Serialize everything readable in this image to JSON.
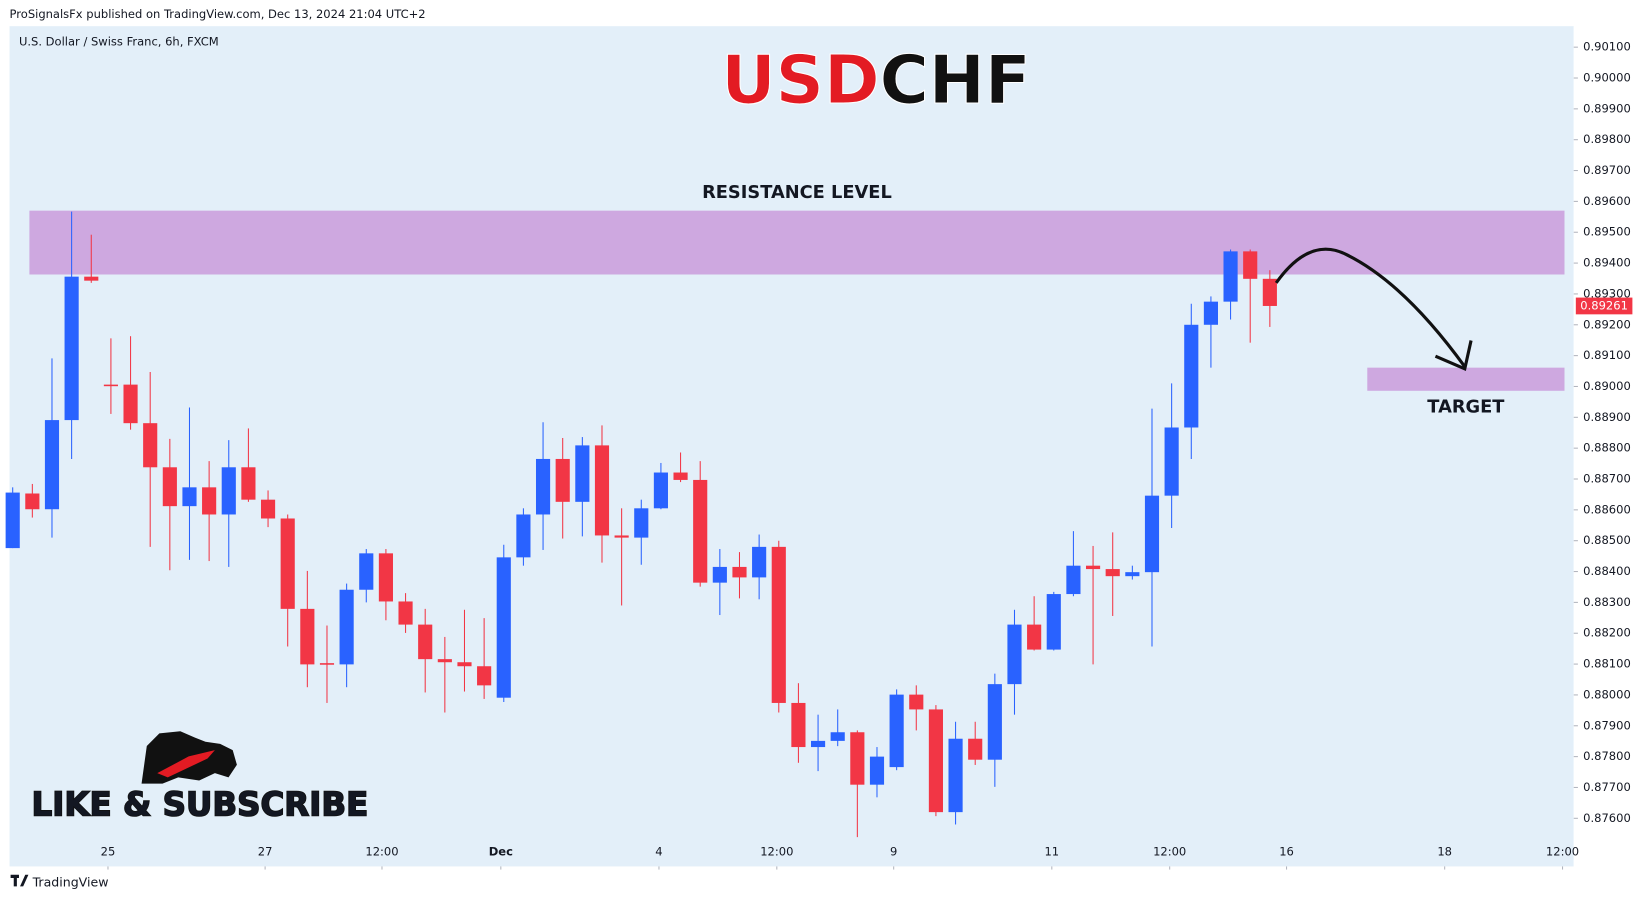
{
  "header": "ProSignalsFx published on TradingView.com, Dec 13, 2024 21:04 UTC+2",
  "footer": "TradingView",
  "badge": "LIKE & SUBSCRIBE",
  "chart_data": {
    "type": "candlestick",
    "title_parts": [
      "USD",
      "CHF"
    ],
    "symbol": "U.S. Dollar / Swiss Franc, 6h, FXCM",
    "up_color": "#2962ff",
    "down_color": "#f23645",
    "open": [
      0.88476,
      0.88653,
      0.88602,
      0.88891,
      0.89356,
      0.89006,
      0.89006,
      0.88881,
      0.88738,
      0.88612,
      0.88673,
      0.88585,
      0.88738,
      0.88633,
      0.88572,
      0.88279,
      0.88103,
      0.88099,
      0.88341,
      0.88459,
      0.88303,
      0.88228,
      0.88116,
      0.88106,
      0.88093,
      0.87991,
      0.88446,
      0.88585,
      0.88765,
      0.88626,
      0.88809,
      0.88517,
      0.8851,
      0.88605,
      0.88721,
      0.88697,
      0.88364,
      0.88415,
      0.88381,
      0.8848,
      0.87974,
      0.87831,
      0.87851,
      0.87879,
      0.87709,
      0.87766,
      0.88001,
      0.87953,
      0.8762,
      0.87858,
      0.8779,
      0.88035,
      0.88228,
      0.88147,
      0.88327,
      0.88419,
      0.88408,
      0.88385,
      0.88398,
      0.88646,
      0.88867,
      0.892,
      0.89275,
      0.89438,
      0.89349
    ],
    "high": [
      0.88673,
      0.88684,
      0.89091,
      0.89567,
      0.89492,
      0.89156,
      0.89163,
      0.89047,
      0.8883,
      0.88932,
      0.88758,
      0.88826,
      0.88864,
      0.88663,
      0.88585,
      0.88402,
      0.88225,
      0.88361,
      0.88473,
      0.88473,
      0.8833,
      0.88279,
      0.88188,
      0.88276,
      0.88249,
      0.88487,
      0.88605,
      0.88884,
      0.88833,
      0.88836,
      0.88874,
      0.88605,
      0.88633,
      0.88752,
      0.88786,
      0.88758,
      0.88473,
      0.88463,
      0.8852,
      0.885,
      0.88038,
      0.87936,
      0.87953,
      0.87885,
      0.87831,
      0.88018,
      0.88031,
      0.87967,
      0.87913,
      0.87913,
      0.88069,
      0.88276,
      0.8832,
      0.88334,
      0.88531,
      0.88483,
      0.88527,
      0.88419,
      0.88928,
      0.8901,
      0.89268,
      0.89292,
      0.89444,
      0.89444,
      0.89377
    ],
    "low": [
      0.88476,
      0.88575,
      0.8851,
      0.88765,
      0.89336,
      0.88911,
      0.8886,
      0.8848,
      0.88404,
      0.88438,
      0.88434,
      0.88415,
      0.88626,
      0.88544,
      0.88157,
      0.88025,
      0.87974,
      0.88025,
      0.883,
      0.88242,
      0.88201,
      0.88008,
      0.87943,
      0.88011,
      0.87987,
      0.87977,
      0.88419,
      0.8847,
      0.88507,
      0.88514,
      0.88429,
      0.8829,
      0.88422,
      0.88602,
      0.8869,
      0.88351,
      0.88259,
      0.88313,
      0.8831,
      0.87943,
      0.8778,
      0.87753,
      0.87834,
      0.87539,
      0.87668,
      0.87756,
      0.87885,
      0.87607,
      0.8758,
      0.87773,
      0.87702,
      0.87936,
      0.88144,
      0.88144,
      0.8832,
      0.88099,
      0.88256,
      0.88374,
      0.88157,
      0.88541,
      0.88765,
      0.89061,
      0.89217,
      0.89142,
      0.89193
    ],
    "close": [
      0.88656,
      0.88602,
      0.88891,
      0.89356,
      0.89343,
      0.89003,
      0.88881,
      0.88738,
      0.88612,
      0.88673,
      0.88585,
      0.88738,
      0.88633,
      0.88572,
      0.88279,
      0.88099,
      0.88099,
      0.88341,
      0.88459,
      0.88303,
      0.88228,
      0.88116,
      0.88106,
      0.88093,
      0.88031,
      0.88446,
      0.88585,
      0.88765,
      0.88626,
      0.88809,
      0.88517,
      0.8851,
      0.88605,
      0.88721,
      0.88697,
      0.88364,
      0.88415,
      0.88381,
      0.8848,
      0.87974,
      0.87831,
      0.87851,
      0.87879,
      0.87709,
      0.878,
      0.88001,
      0.87953,
      0.8762,
      0.87858,
      0.8779,
      0.88035,
      0.88228,
      0.88147,
      0.88327,
      0.88419,
      0.88408,
      0.88385,
      0.88398,
      0.88646,
      0.88867,
      0.892,
      0.89275,
      0.89438,
      0.89349,
      0.89261
    ],
    "last_price": {
      "value": 0.89261,
      "label": "0.89261"
    },
    "zones": [
      {
        "label": "RESISTANCE LEVEL",
        "color": "#cea8e0",
        "y": [
          0.89363,
          0.8957
        ],
        "x": [
          0.85,
          79.0
        ]
      },
      {
        "label": "TARGET",
        "color": "#cea8e0",
        "y": [
          0.88986,
          0.89061
        ],
        "x": [
          68.96,
          79.0
        ]
      }
    ],
    "xlim": [
      -0.16,
      79.47
    ],
    "xticks": [
      {
        "value": 4.85,
        "label": "25"
      },
      {
        "value": 12.85,
        "label": "27"
      },
      {
        "value": 18.8,
        "label": "12:00"
      },
      {
        "value": 24.85,
        "label": "Dec"
      },
      {
        "value": 32.9,
        "label": "4"
      },
      {
        "value": 38.9,
        "label": "12:00"
      },
      {
        "value": 44.85,
        "label": "9"
      },
      {
        "value": 52.9,
        "label": "11"
      },
      {
        "value": 58.9,
        "label": "12:00"
      },
      {
        "value": 64.85,
        "label": "16"
      },
      {
        "value": 72.9,
        "label": "18"
      },
      {
        "value": 78.9,
        "label": "12:00"
      }
    ],
    "ylim": [
      0.87444,
      0.90168
    ],
    "yticks": [
      {
        "value": 0.876,
        "label": "0.87600"
      },
      {
        "value": 0.877,
        "label": "0.87700"
      },
      {
        "value": 0.878,
        "label": "0.87800"
      },
      {
        "value": 0.879,
        "label": "0.87900"
      },
      {
        "value": 0.88,
        "label": "0.88000"
      },
      {
        "value": 0.881,
        "label": "0.88100"
      },
      {
        "value": 0.882,
        "label": "0.88200"
      },
      {
        "value": 0.883,
        "label": "0.88300"
      },
      {
        "value": 0.884,
        "label": "0.88400"
      },
      {
        "value": 0.885,
        "label": "0.88500"
      },
      {
        "value": 0.886,
        "label": "0.88600"
      },
      {
        "value": 0.887,
        "label": "0.88700"
      },
      {
        "value": 0.888,
        "label": "0.88800"
      },
      {
        "value": 0.889,
        "label": "0.88900"
      },
      {
        "value": 0.89,
        "label": "0.89000"
      },
      {
        "value": 0.891,
        "label": "0.89100"
      },
      {
        "value": 0.892,
        "label": "0.89200"
      },
      {
        "value": 0.893,
        "label": "0.89300"
      },
      {
        "value": 0.894,
        "label": "0.89400"
      },
      {
        "value": 0.895,
        "label": "0.89500"
      },
      {
        "value": 0.896,
        "label": "0.89600"
      },
      {
        "value": 0.897,
        "label": "0.89700"
      },
      {
        "value": 0.898,
        "label": "0.89800"
      },
      {
        "value": 0.899,
        "label": "0.89900"
      },
      {
        "value": 0.9,
        "label": "0.90000"
      },
      {
        "value": 0.901,
        "label": "0.90100"
      }
    ]
  }
}
